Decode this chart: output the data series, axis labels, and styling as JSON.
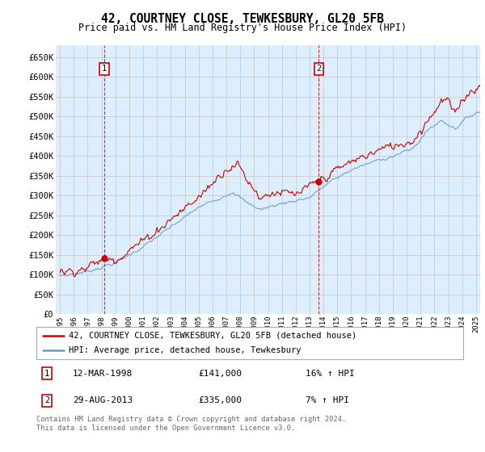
{
  "title": "42, COURTNEY CLOSE, TEWKESBURY, GL20 5FB",
  "subtitle": "Price paid vs. HM Land Registry's House Price Index (HPI)",
  "legend_line1": "42, COURTNEY CLOSE, TEWKESBURY, GL20 5FB (detached house)",
  "legend_line2": "HPI: Average price, detached house, Tewkesbury",
  "annotation1": {
    "label": "1",
    "date_x": 1998.19,
    "price": 141000,
    "hpi_pct": "16% ↑ HPI",
    "date_str": "12-MAR-1998",
    "price_str": "£141,000"
  },
  "annotation2": {
    "label": "2",
    "date_x": 2013.66,
    "price": 335000,
    "hpi_pct": "7% ↑ HPI",
    "date_str": "29-AUG-2013",
    "price_str": "£335,000"
  },
  "footer": "Contains HM Land Registry data © Crown copyright and database right 2024.\nThis data is licensed under the Open Government Licence v3.0.",
  "price_color": "#cc0000",
  "hpi_color": "#6699cc",
  "background_color": "#ddeeff",
  "grid_color": "#cccccc",
  "outer_bg": "#ffffff",
  "ylim": [
    0,
    680000
  ],
  "yticks": [
    0,
    50000,
    100000,
    150000,
    200000,
    250000,
    300000,
    350000,
    400000,
    450000,
    500000,
    550000,
    600000,
    650000
  ],
  "xlim": [
    1994.7,
    2025.3
  ],
  "xticks": [
    1995,
    1996,
    1997,
    1998,
    1999,
    2000,
    2001,
    2002,
    2003,
    2004,
    2005,
    2006,
    2007,
    2008,
    2009,
    2010,
    2011,
    2012,
    2013,
    2014,
    2015,
    2016,
    2017,
    2018,
    2019,
    2020,
    2021,
    2022,
    2023,
    2024,
    2025
  ],
  "xticklabels": [
    "1995",
    "1996",
    "1997",
    "1998",
    "1999",
    "2000",
    "2001",
    "2002",
    "2003",
    "2004",
    "2005",
    "2006",
    "2007",
    "2008",
    "2009",
    "2010",
    "2011",
    "2012",
    "2013",
    "2014",
    "2015",
    "2016",
    "2017",
    "2018",
    "2019",
    "2020",
    "2021",
    "2022",
    "2023",
    "2024",
    "2025"
  ]
}
